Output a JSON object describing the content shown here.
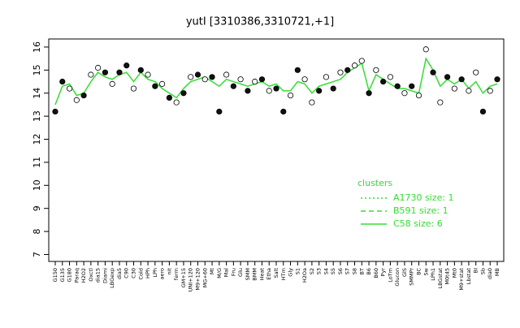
{
  "chart_data": {
    "type": "line",
    "title": "yutI [3310386,3310721,+1]",
    "categories": [
      "G150",
      "G135",
      "G180",
      "Paraq",
      "H2O2",
      "Oxctl",
      "dia15",
      "Diami",
      "LBGexp",
      "dia5",
      "C90",
      "C30",
      "Cold",
      "HPh",
      "LPh",
      "aero",
      "nit",
      "ferm",
      "GM+15",
      "UNI+120",
      "M9+120",
      "MG+60",
      "Mt",
      "M/G",
      "Mal",
      "Fru",
      "Glu",
      "SMM",
      "BMM",
      "Heat",
      "Etha",
      "Salt",
      "HTm",
      "Gly",
      "S1",
      "H2Oa",
      "S2",
      "S3",
      "S4",
      "S5",
      "S6",
      "S7",
      "S8",
      "BT",
      "B6",
      "B60",
      "Pyr",
      "LoTm",
      "Glucon",
      "GlS",
      "SMMPr",
      "BC",
      "Sw",
      "LPh1",
      "LBGstat",
      "M0t45",
      "Mt0",
      "M9+stat",
      "Lbstat",
      "BI",
      "Sb",
      "dia0",
      "MB"
    ],
    "line": {
      "color": "#33dd33",
      "values": [
        13.5,
        14.3,
        14.4,
        13.9,
        14.0,
        14.5,
        14.9,
        14.7,
        14.6,
        14.8,
        14.9,
        14.5,
        14.9,
        14.6,
        14.5,
        14.2,
        14.0,
        13.8,
        14.2,
        14.5,
        14.6,
        14.7,
        14.5,
        14.3,
        14.6,
        14.5,
        14.4,
        14.3,
        14.4,
        14.5,
        14.3,
        14.4,
        14.1,
        14.1,
        14.5,
        14.4,
        14.0,
        14.3,
        14.4,
        14.5,
        14.6,
        14.9,
        15.1,
        15.3,
        14.1,
        14.8,
        14.6,
        14.4,
        14.2,
        14.2,
        14.1,
        14.0,
        15.5,
        15.0,
        14.3,
        14.6,
        14.4,
        14.6,
        14.2,
        14.5,
        14.0,
        14.3,
        14.4
      ]
    },
    "points": {
      "values": [
        13.2,
        14.5,
        14.2,
        13.7,
        13.9,
        14.8,
        15.1,
        14.9,
        14.4,
        14.9,
        15.2,
        14.2,
        15.0,
        14.8,
        14.3,
        14.4,
        13.8,
        13.6,
        14.0,
        14.7,
        14.8,
        14.6,
        14.7,
        13.2,
        14.8,
        14.3,
        14.6,
        14.1,
        14.5,
        14.6,
        14.1,
        14.2,
        13.2,
        13.9,
        15.0,
        14.6,
        13.6,
        14.1,
        14.7,
        14.2,
        14.9,
        15.0,
        15.2,
        15.4,
        14.0,
        15.0,
        14.5,
        14.7,
        14.3,
        14.0,
        14.3,
        13.9,
        15.9,
        14.9,
        13.6,
        14.7,
        14.2,
        14.6,
        14.1,
        14.9,
        13.2,
        14.1,
        14.6
      ],
      "open": [
        false,
        false,
        true,
        true,
        false,
        true,
        true,
        false,
        true,
        false,
        false,
        true,
        false,
        true,
        false,
        true,
        false,
        true,
        false,
        true,
        false,
        true,
        false,
        false,
        true,
        false,
        true,
        false,
        true,
        false,
        true,
        false,
        false,
        true,
        false,
        true,
        true,
        false,
        true,
        false,
        true,
        false,
        true,
        true,
        false,
        true,
        false,
        true,
        false,
        true,
        false,
        true,
        true,
        false,
        true,
        false,
        true,
        false,
        true,
        true,
        false,
        true,
        false
      ]
    },
    "ylim": [
      6.7,
      16.35
    ],
    "yticks": [
      7,
      8,
      9,
      10,
      11,
      12,
      13,
      14,
      15,
      16
    ],
    "legend": {
      "title": "clusters",
      "entries": [
        {
          "name": "A1730 size: 1",
          "dash": "2,3"
        },
        {
          "name": "B591 size: 1",
          "dash": "6,4"
        },
        {
          "name": "C58 size: 6",
          "dash": "none"
        }
      ]
    }
  }
}
